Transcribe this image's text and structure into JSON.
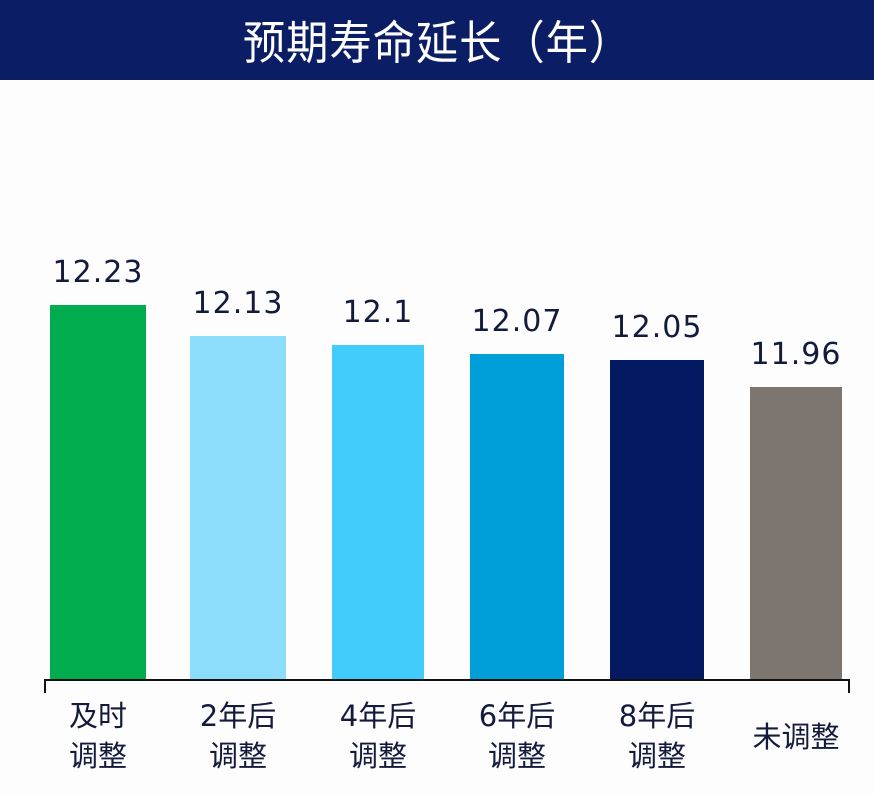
{
  "title": "预期寿命延长（年）",
  "chart_data": {
    "type": "bar",
    "title": "预期寿命延长（年）",
    "xlabel": "",
    "ylabel": "",
    "ylim": [
      11.0,
      12.3
    ],
    "grid": false,
    "legend": null,
    "categories": [
      "及时调整",
      "2年后调整",
      "4年后调整",
      "6年后调整",
      "8年后调整",
      "未调整"
    ],
    "category_lines": [
      [
        "及时",
        "调整"
      ],
      [
        "2年后",
        "调整"
      ],
      [
        "4年后",
        "调整"
      ],
      [
        "6年后",
        "调整"
      ],
      [
        "8年后",
        "调整"
      ],
      [
        "未调整"
      ]
    ],
    "values": [
      12.23,
      12.13,
      12.1,
      12.07,
      12.05,
      11.96
    ],
    "value_labels": [
      "12.23",
      "12.13",
      "12.1",
      "12.07",
      "12.05",
      "11.96"
    ],
    "colors": [
      "#00ac4e",
      "#8cdcfb",
      "#42ccfc",
      "#009fd9",
      "#031962",
      "#7d7670"
    ]
  },
  "colors": {
    "title_bg": "#0b1d64",
    "title_text": "#ffffff",
    "label_text": "#141a3c",
    "axis": "#111111"
  }
}
